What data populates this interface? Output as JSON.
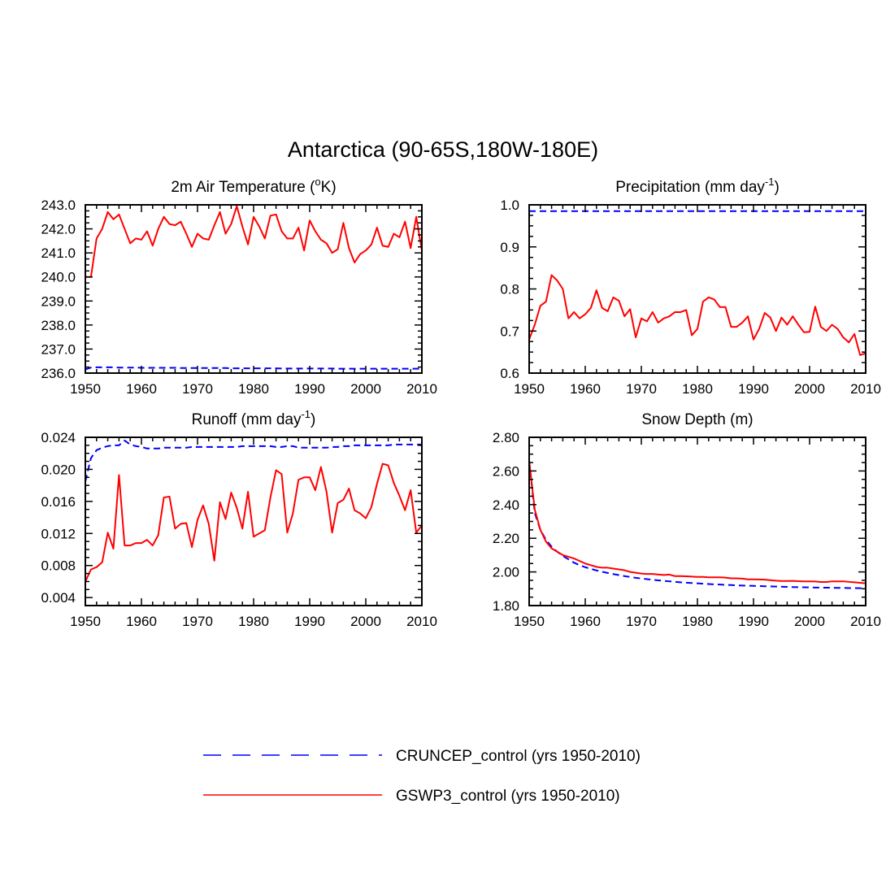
{
  "figure": {
    "title": "Antarctica (90-65S,180W-180E)"
  },
  "colors": {
    "cruncep": "#0000ff",
    "gswp3": "#ff0000",
    "axes": "#000000",
    "background": "#ffffff"
  },
  "legend": {
    "items": [
      {
        "label": "CRUNCEP_control (yrs 1950-2010)",
        "color": "#0000ff",
        "style": "dashed"
      },
      {
        "label": "GSWP3_control (yrs 1950-2010)",
        "color": "#ff0000",
        "style": "solid"
      }
    ]
  },
  "chart_data": [
    {
      "type": "line",
      "title": "2m Air Temperature (oK)",
      "title_parts": {
        "pre": "2m Air Temperature (",
        "sup": "o",
        "post": "K)"
      },
      "x_start": 1950,
      "x_step": 1,
      "xlim": [
        1950,
        2010
      ],
      "xticks": [
        "1950",
        "1960",
        "1970",
        "1980",
        "1990",
        "2000",
        "2010"
      ],
      "ylim": [
        236.0,
        243.0
      ],
      "yticks": [
        "236.0",
        "237.0",
        "238.0",
        "239.0",
        "240.0",
        "241.0",
        "242.0",
        "243.0"
      ],
      "series": [
        {
          "name": "CRUNCEP_control",
          "color": "#0000ff",
          "dash": true,
          "values": [
            236.15,
            236.23,
            236.24,
            236.24,
            236.24,
            236.24,
            236.23,
            236.23,
            236.23,
            236.23,
            236.22,
            236.22,
            236.22,
            236.22,
            236.22,
            236.22,
            236.22,
            236.21,
            236.21,
            236.21,
            236.21,
            236.21,
            236.21,
            236.21,
            236.21,
            236.21,
            236.2,
            236.2,
            236.2,
            236.2,
            236.2,
            236.2,
            236.2,
            236.2,
            236.2,
            236.19,
            236.19,
            236.19,
            236.19,
            236.19,
            236.19,
            236.19,
            236.19,
            236.19,
            236.19,
            236.18,
            236.18,
            236.18,
            236.18,
            236.18,
            236.18,
            236.18,
            236.18,
            236.18,
            236.18,
            236.18,
            236.18,
            236.18,
            236.18,
            236.18,
            236.18
          ]
        },
        {
          "name": "GSWP3_control",
          "color": "#ff0000",
          "dash": false,
          "values": [
            240.0,
            240.0,
            241.6,
            242.0,
            242.7,
            242.4,
            242.6,
            242.0,
            241.4,
            241.6,
            241.55,
            241.9,
            241.3,
            242.0,
            242.5,
            242.2,
            242.15,
            242.3,
            241.8,
            241.25,
            241.8,
            241.6,
            241.55,
            242.15,
            242.7,
            241.8,
            242.2,
            242.95,
            242.1,
            241.35,
            242.5,
            242.1,
            241.6,
            242.55,
            242.6,
            241.9,
            241.6,
            241.6,
            242.05,
            241.1,
            242.35,
            241.9,
            241.55,
            241.4,
            241.0,
            241.15,
            242.25,
            241.2,
            240.6,
            240.95,
            241.1,
            241.35,
            242.05,
            241.3,
            241.25,
            241.8,
            241.65,
            242.3,
            241.2,
            242.5,
            241.1
          ]
        }
      ]
    },
    {
      "type": "line",
      "title": "Precipitation (mm day-1)",
      "title_parts": {
        "pre": "Precipitation (mm day",
        "sup": "-1",
        "post": ")"
      },
      "x_start": 1950,
      "x_step": 1,
      "xlim": [
        1950,
        2010
      ],
      "xticks": [
        "1950",
        "1960",
        "1970",
        "1980",
        "1990",
        "2000",
        "2010"
      ],
      "ylim": [
        0.6,
        1.0
      ],
      "yticks": [
        "0.6",
        "0.7",
        "0.8",
        "0.9",
        "1.0"
      ],
      "series": [
        {
          "name": "CRUNCEP_control",
          "color": "#0000ff",
          "dash": true,
          "values": [
            0.985,
            0.985,
            0.985,
            0.985,
            0.985,
            0.985,
            0.985,
            0.985,
            0.985,
            0.985,
            0.985,
            0.985,
            0.985,
            0.985,
            0.985,
            0.985,
            0.985,
            0.985,
            0.985,
            0.985,
            0.985,
            0.985,
            0.985,
            0.985,
            0.985,
            0.985,
            0.985,
            0.985,
            0.985,
            0.985,
            0.985,
            0.985,
            0.985,
            0.985,
            0.985,
            0.985,
            0.985,
            0.985,
            0.985,
            0.985,
            0.985,
            0.985,
            0.985,
            0.985,
            0.985,
            0.985,
            0.985,
            0.985,
            0.985,
            0.985,
            0.985,
            0.985,
            0.985,
            0.985,
            0.985,
            0.985,
            0.985,
            0.985,
            0.985,
            0.985,
            0.985
          ]
        },
        {
          "name": "GSWP3_control",
          "color": "#ff0000",
          "dash": false,
          "values": [
            0.68,
            0.715,
            0.76,
            0.77,
            0.833,
            0.82,
            0.8,
            0.73,
            0.745,
            0.73,
            0.74,
            0.755,
            0.797,
            0.755,
            0.747,
            0.78,
            0.772,
            0.735,
            0.752,
            0.685,
            0.73,
            0.723,
            0.745,
            0.72,
            0.73,
            0.735,
            0.745,
            0.745,
            0.75,
            0.69,
            0.705,
            0.77,
            0.78,
            0.775,
            0.757,
            0.757,
            0.71,
            0.71,
            0.72,
            0.735,
            0.68,
            0.705,
            0.743,
            0.732,
            0.7,
            0.732,
            0.715,
            0.735,
            0.715,
            0.697,
            0.698,
            0.758,
            0.71,
            0.7,
            0.715,
            0.705,
            0.685,
            0.673,
            0.693,
            0.643,
            0.647
          ]
        }
      ]
    },
    {
      "type": "line",
      "title": "Runoff (mm day-1)",
      "title_parts": {
        "pre": "Runoff (mm day",
        "sup": "-1",
        "post": ")"
      },
      "x_start": 1950,
      "x_step": 1,
      "xlim": [
        1950,
        2010
      ],
      "xticks": [
        "1950",
        "1960",
        "1970",
        "1980",
        "1990",
        "2000",
        "2010"
      ],
      "ylim": [
        0.003,
        0.024
      ],
      "yticks": [
        "0.004",
        "0.008",
        "0.012",
        "0.016",
        "0.020",
        "0.024"
      ],
      "series": [
        {
          "name": "CRUNCEP_control",
          "color": "#0000ff",
          "dash": true,
          "values": [
            0.0185,
            0.0214,
            0.0224,
            0.0227,
            0.0229,
            0.023,
            0.023,
            0.0236,
            0.0231,
            0.0229,
            0.0228,
            0.0226,
            0.0226,
            0.0226,
            0.0227,
            0.0227,
            0.0227,
            0.0227,
            0.0227,
            0.0228,
            0.0228,
            0.0228,
            0.0228,
            0.0228,
            0.0228,
            0.0228,
            0.0228,
            0.0228,
            0.0229,
            0.0229,
            0.0229,
            0.0229,
            0.0229,
            0.0229,
            0.0228,
            0.0228,
            0.0229,
            0.0229,
            0.0227,
            0.0227,
            0.0227,
            0.0227,
            0.0227,
            0.0227,
            0.0228,
            0.0228,
            0.0229,
            0.0229,
            0.023,
            0.023,
            0.023,
            0.023,
            0.023,
            0.023,
            0.023,
            0.0231,
            0.0231,
            0.0231,
            0.0231,
            0.0231,
            0.0231
          ]
        },
        {
          "name": "GSWP3_control",
          "color": "#ff0000",
          "dash": false,
          "values": [
            0.006,
            0.0075,
            0.0078,
            0.0084,
            0.0121,
            0.0101,
            0.0193,
            0.0105,
            0.0105,
            0.0108,
            0.0108,
            0.0112,
            0.0105,
            0.0118,
            0.0165,
            0.0166,
            0.0126,
            0.0132,
            0.0133,
            0.0103,
            0.0137,
            0.0155,
            0.0132,
            0.0086,
            0.0159,
            0.0138,
            0.0171,
            0.0152,
            0.0126,
            0.0172,
            0.0116,
            0.012,
            0.0124,
            0.0165,
            0.0199,
            0.0194,
            0.0121,
            0.0145,
            0.0187,
            0.019,
            0.019,
            0.0174,
            0.0203,
            0.0172,
            0.0121,
            0.0158,
            0.0162,
            0.0176,
            0.0149,
            0.0145,
            0.0139,
            0.0153,
            0.0182,
            0.0207,
            0.0205,
            0.0183,
            0.0167,
            0.0149,
            0.0174,
            0.0121,
            0.013
          ]
        }
      ]
    },
    {
      "type": "line",
      "title": "Snow Depth (m)",
      "title_parts": {
        "pre": "Snow Depth (m)",
        "sup": "",
        "post": ""
      },
      "x_start": 1950,
      "x_step": 1,
      "xlim": [
        1950,
        2010
      ],
      "xticks": [
        "1950",
        "1960",
        "1970",
        "1980",
        "1990",
        "2000",
        "2010"
      ],
      "ylim": [
        1.8,
        2.8
      ],
      "yticks": [
        "1.80",
        "2.00",
        "2.20",
        "2.40",
        "2.60",
        "2.80"
      ],
      "series": [
        {
          "name": "CRUNCEP_control",
          "color": "#0000ff",
          "dash": true,
          "values": [
            2.66,
            2.35,
            2.25,
            2.19,
            2.15,
            2.12,
            2.095,
            2.075,
            2.055,
            2.04,
            2.028,
            2.018,
            2.009,
            2.001,
            1.994,
            1.987,
            1.981,
            1.975,
            1.97,
            1.965,
            1.961,
            1.957,
            1.953,
            1.95,
            1.947,
            1.944,
            1.941,
            1.938,
            1.936,
            1.934,
            1.932,
            1.93,
            1.928,
            1.926,
            1.925,
            1.923,
            1.922,
            1.92,
            1.919,
            1.918,
            1.917,
            1.916,
            1.915,
            1.914,
            1.913,
            1.912,
            1.911,
            1.91,
            1.909,
            1.909,
            1.908,
            1.907,
            1.907,
            1.906,
            1.906,
            1.905,
            1.905,
            1.904,
            1.904,
            1.903,
            1.903
          ]
        },
        {
          "name": "GSWP3_control",
          "color": "#ff0000",
          "dash": false,
          "values": [
            2.66,
            2.37,
            2.25,
            2.18,
            2.14,
            2.12,
            2.1,
            2.09,
            2.08,
            2.065,
            2.05,
            2.04,
            2.03,
            2.025,
            2.025,
            2.02,
            2.015,
            2.01,
            2.0,
            1.995,
            1.99,
            1.988,
            1.988,
            1.985,
            1.982,
            1.984,
            1.975,
            1.975,
            1.974,
            1.972,
            1.97,
            1.97,
            1.968,
            1.968,
            1.968,
            1.966,
            1.962,
            1.962,
            1.96,
            1.956,
            1.956,
            1.955,
            1.954,
            1.951,
            1.948,
            1.946,
            1.946,
            1.947,
            1.945,
            1.944,
            1.944,
            1.943,
            1.94,
            1.94,
            1.944,
            1.944,
            1.944,
            1.941,
            1.938,
            1.935,
            1.932
          ]
        }
      ]
    }
  ]
}
